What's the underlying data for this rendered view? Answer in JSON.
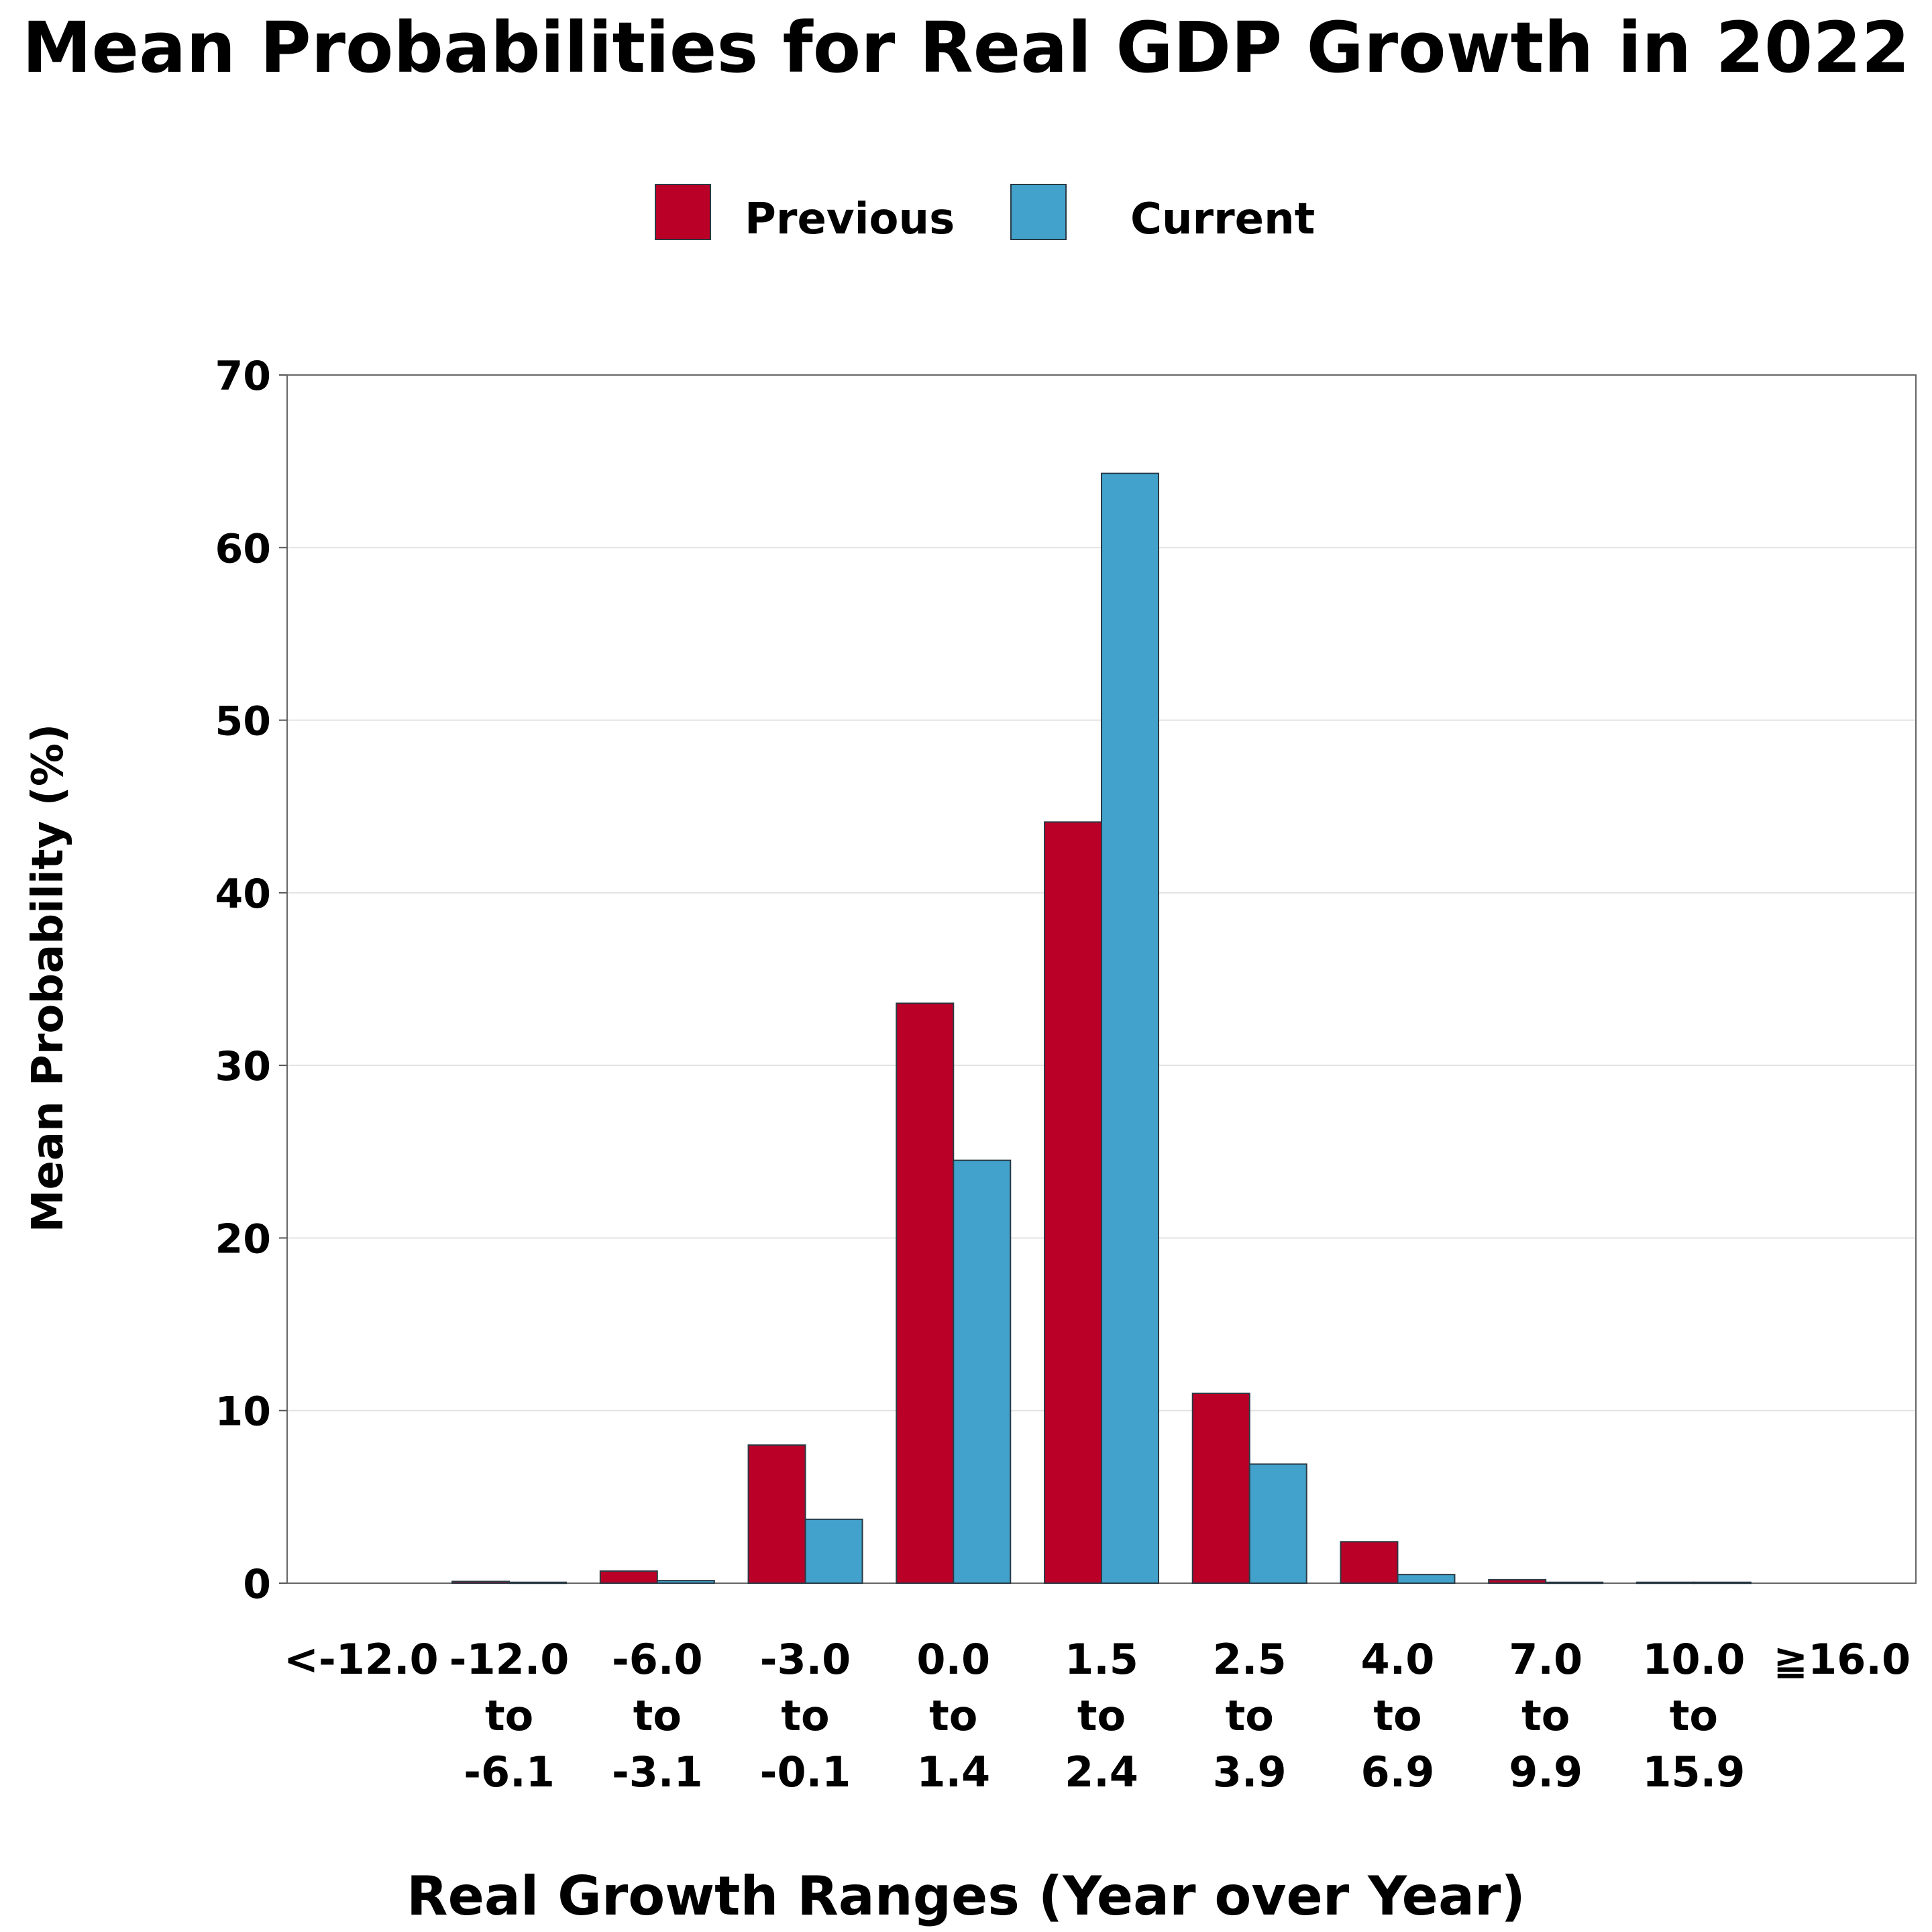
{
  "chart_data": {
    "type": "bar",
    "title": "Mean Probabilities for Real GDP Growth in 2022",
    "xlabel": "Real Growth Ranges (Year over Year)",
    "ylabel": "Mean Probability (%)",
    "ylim": [
      0,
      70
    ],
    "yticks": [
      "0",
      "10",
      "20",
      "30",
      "40",
      "50",
      "60",
      "70"
    ],
    "grid": true,
    "legend_position": "top-center",
    "categories": [
      [
        "<-12.0"
      ],
      [
        "-12.0",
        "to",
        "-6.1"
      ],
      [
        "-6.0",
        "to",
        "-3.1"
      ],
      [
        "-3.0",
        "to",
        "-0.1"
      ],
      [
        "0.0",
        "to",
        "1.4"
      ],
      [
        "1.5",
        "to",
        "2.4"
      ],
      [
        "2.5",
        "to",
        "3.9"
      ],
      [
        "4.0",
        "to",
        "6.9"
      ],
      [
        "7.0",
        "to",
        "9.9"
      ],
      [
        "10.0",
        "to",
        "15.9"
      ],
      [
        "≧16.0"
      ]
    ],
    "series": [
      {
        "name": "Previous",
        "color": "#bb0028",
        "values": [
          0.0,
          0.1,
          0.7,
          8.0,
          33.6,
          44.1,
          11.0,
          2.4,
          0.2,
          0.05,
          0.0
        ]
      },
      {
        "name": "Current",
        "color": "#42a2cb",
        "values": [
          0.0,
          0.05,
          0.15,
          3.7,
          24.5,
          64.3,
          6.9,
          0.5,
          0.05,
          0.05,
          0.0
        ]
      }
    ]
  }
}
